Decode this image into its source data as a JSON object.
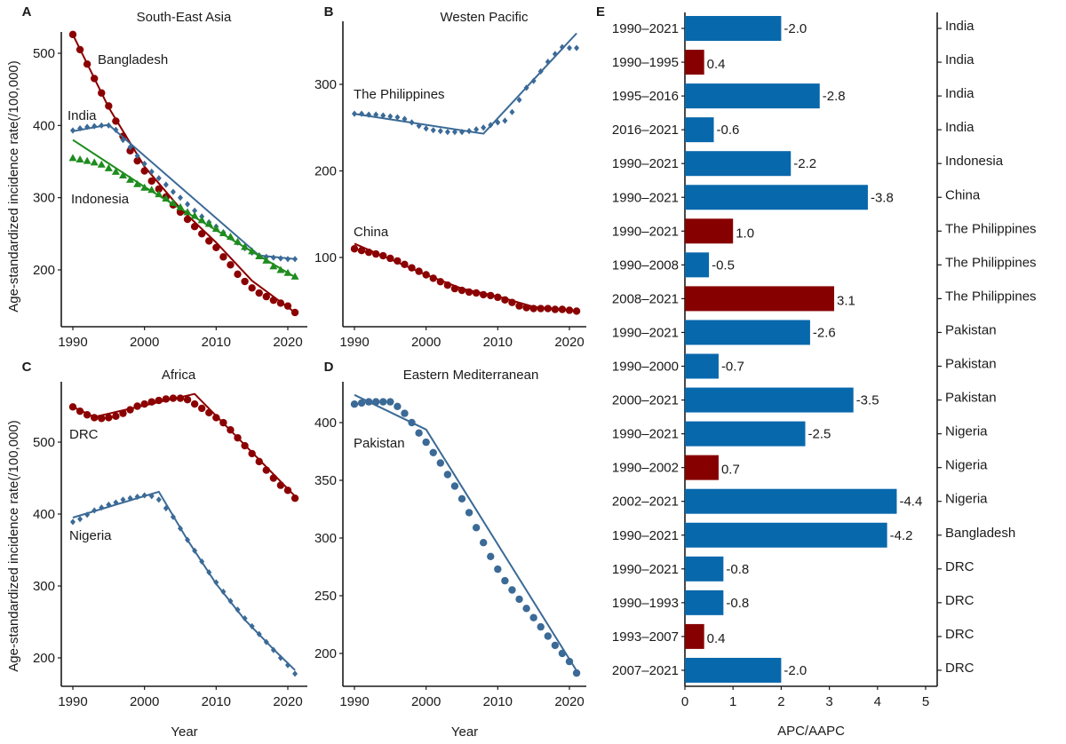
{
  "colors": {
    "red": "#8b0000",
    "blue": "#3b6a96",
    "green": "#1e8c1e",
    "bar_blue": "#0868ac",
    "bar_red": "#870000"
  },
  "ylabel": "Age-standardized incidence rate(/100,000)",
  "chart_data": [
    {
      "panel": "A",
      "type": "line",
      "title": "South-East Asia",
      "xlabel": "",
      "ylabel": "Age-standardized incidence rate(/100,000)",
      "xlim": [
        1988.5,
        2022.5
      ],
      "ylim": [
        135,
        545
      ],
      "xticks": [
        1990,
        2000,
        2010,
        2020
      ],
      "yticks": [
        200,
        300,
        400,
        500
      ],
      "x": [
        1990,
        1991,
        1992,
        1993,
        1994,
        1995,
        1996,
        1997,
        1998,
        1999,
        2000,
        2001,
        2002,
        2003,
        2004,
        2005,
        2006,
        2007,
        2008,
        2009,
        2010,
        2011,
        2012,
        2013,
        2014,
        2015,
        2016,
        2017,
        2018,
        2019,
        2020,
        2021
      ],
      "series": [
        {
          "name": "Bangladesh",
          "color_key": "red",
          "marker": "circle",
          "values": [
            526,
            505,
            485,
            465,
            445,
            427,
            406,
            385,
            365,
            351,
            337,
            323,
            312,
            301,
            290,
            280,
            270,
            260,
            250,
            240,
            231,
            218,
            207,
            194,
            184,
            175,
            168,
            163,
            158,
            154,
            150,
            141
          ],
          "fit_x": [
            1990,
            1995,
            2000,
            2005,
            2010,
            2015,
            2021
          ],
          "fit_y": [
            526,
            425,
            343,
            285,
            238,
            185,
            141
          ]
        },
        {
          "name": "India",
          "color_key": "blue",
          "marker": "diamond",
          "values": [
            393,
            396,
            398,
            399,
            400,
            400,
            394,
            380,
            370,
            358,
            347,
            336,
            327,
            318,
            308,
            300,
            291,
            282,
            274,
            266,
            260,
            252,
            245,
            238,
            230,
            224,
            220,
            218,
            217,
            216,
            215,
            215
          ],
          "fit_x": [
            1990,
            1995,
            2016,
            2021
          ],
          "fit_y": [
            392,
            401,
            220,
            215
          ]
        },
        {
          "name": "Indonesia",
          "color_key": "green",
          "marker": "triangle",
          "values": [
            355,
            353,
            351,
            349,
            346,
            341,
            336,
            331,
            325,
            319,
            314,
            311,
            305,
            299,
            293,
            287,
            280,
            275,
            269,
            264,
            257,
            251,
            246,
            239,
            232,
            226,
            219,
            213,
            205,
            200,
            196,
            191
          ],
          "fit_x": [
            1990,
            2000,
            2010,
            2021
          ],
          "fit_y": [
            380,
            315,
            255,
            190
          ]
        }
      ],
      "annotations": [
        "Bangladesh",
        "India",
        "Indonesia"
      ]
    },
    {
      "panel": "B",
      "type": "line",
      "title": "Westen Pacific",
      "xlim": [
        1988.5,
        2022.5
      ],
      "ylim": [
        30,
        375
      ],
      "xticks": [
        1990,
        2000,
        2010,
        2020
      ],
      "yticks": [
        100,
        200,
        300
      ],
      "x": [
        1990,
        1991,
        1992,
        1993,
        1994,
        1995,
        1996,
        1997,
        1998,
        1999,
        2000,
        2001,
        2002,
        2003,
        2004,
        2005,
        2006,
        2007,
        2008,
        2009,
        2010,
        2011,
        2012,
        2013,
        2014,
        2015,
        2016,
        2017,
        2018,
        2019,
        2020,
        2021
      ],
      "series": [
        {
          "name": "The Philippines",
          "color_key": "blue",
          "marker": "diamond",
          "values": [
            266,
            266,
            265,
            265,
            264,
            263,
            262,
            260,
            256,
            252,
            249,
            247,
            246,
            245,
            245,
            245,
            246,
            248,
            250,
            253,
            256,
            258,
            268,
            282,
            296,
            304,
            315,
            326,
            335,
            343,
            342,
            342
          ],
          "fit_x": [
            1990,
            2008,
            2021
          ],
          "fit_y": [
            266,
            243,
            359
          ]
        },
        {
          "name": "China",
          "color_key": "red",
          "marker": "circle",
          "values": [
            110,
            108,
            106,
            104,
            102,
            99,
            96,
            92,
            88,
            84,
            80,
            76,
            72,
            68,
            64,
            62,
            60,
            59,
            57,
            56,
            54,
            51,
            48,
            44,
            42,
            41,
            41,
            41,
            40,
            40,
            39,
            38
          ],
          "fit_x": [
            1990,
            2000,
            2005,
            2010,
            2015,
            2021
          ],
          "fit_y": [
            116,
            80,
            64,
            55,
            43,
            38
          ]
        }
      ],
      "annotations": [
        "The Philippines",
        "China"
      ]
    },
    {
      "panel": "C",
      "type": "line",
      "title": "Africa",
      "xlim": [
        1988.5,
        2022.5
      ],
      "ylim": [
        160,
        580
      ],
      "xticks": [
        1990,
        2000,
        2010,
        2020
      ],
      "yticks": [
        200,
        300,
        400,
        500
      ],
      "xlabel": "Year",
      "x": [
        1990,
        1991,
        1992,
        1993,
        1994,
        1995,
        1996,
        1997,
        1998,
        1999,
        2000,
        2001,
        2002,
        2003,
        2004,
        2005,
        2006,
        2007,
        2008,
        2009,
        2010,
        2011,
        2012,
        2013,
        2014,
        2015,
        2016,
        2017,
        2018,
        2019,
        2020,
        2021
      ],
      "series": [
        {
          "name": "DRC",
          "color_key": "red",
          "marker": "circle",
          "values": [
            549,
            543,
            538,
            534,
            533,
            534,
            536,
            540,
            545,
            550,
            553,
            556,
            558,
            560,
            561,
            561,
            559,
            553,
            547,
            541,
            534,
            527,
            517,
            506,
            495,
            484,
            473,
            461,
            450,
            440,
            433,
            422
          ],
          "fit_x": [
            1990,
            1993,
            2007,
            2021
          ],
          "fit_y": [
            549,
            535,
            567,
            425
          ]
        },
        {
          "name": "Nigeria",
          "color_key": "blue",
          "marker": "diamond",
          "values": [
            389,
            393,
            399,
            405,
            409,
            413,
            416,
            420,
            422,
            424,
            426,
            425,
            420,
            408,
            396,
            380,
            364,
            349,
            334,
            319,
            305,
            292,
            279,
            267,
            255,
            244,
            233,
            222,
            211,
            200,
            190,
            178
          ],
          "fit_x": [
            1990,
            2002,
            2006,
            2010,
            2014,
            2018,
            2021
          ],
          "fit_y": [
            395,
            431,
            364,
            303,
            253,
            212,
            183
          ]
        }
      ],
      "annotations": [
        "DRC",
        "Nigeria"
      ]
    },
    {
      "panel": "D",
      "type": "line",
      "title": "Eastern Mediterranean",
      "xlim": [
        1988.5,
        2022.5
      ],
      "ylim": [
        172,
        437
      ],
      "xticks": [
        1990,
        2000,
        2010,
        2020
      ],
      "yticks": [
        200,
        250,
        300,
        350,
        400
      ],
      "xlabel": "Year",
      "x": [
        1990,
        1991,
        1992,
        1993,
        1994,
        1995,
        1996,
        1997,
        1998,
        1999,
        2000,
        2001,
        2002,
        2003,
        2004,
        2005,
        2006,
        2007,
        2008,
        2009,
        2010,
        2011,
        2012,
        2013,
        2014,
        2015,
        2016,
        2017,
        2018,
        2019,
        2020,
        2021
      ],
      "series": [
        {
          "name": "Pakistan",
          "color_key": "blue",
          "marker": "circle",
          "values": [
            416,
            417,
            418,
            418,
            418,
            418,
            414,
            408,
            400,
            391,
            383,
            374,
            365,
            355,
            345,
            334,
            322,
            309,
            296,
            284,
            273,
            263,
            255,
            247,
            239,
            231,
            223,
            215,
            207,
            200,
            193,
            183
          ],
          "fit_x": [
            1990,
            2000,
            2021
          ],
          "fit_y": [
            424,
            394,
            185
          ]
        }
      ],
      "annotations": [
        "Pakistan"
      ]
    },
    {
      "panel": "E",
      "type": "bar",
      "orientation": "horizontal",
      "xlabel": "APC/AAPC",
      "xlim": [
        0,
        5.3
      ],
      "xticks": [
        0,
        1,
        2,
        3,
        4,
        5
      ],
      "categories": [
        "1990–2021",
        "1990–1995",
        "1995–2016",
        "2016–2021",
        "1990–2021",
        "1990–2021",
        "1990–2021",
        "1990–2008",
        "2008–2021",
        "1990–2021",
        "1990–2000",
        "2000–2021",
        "1990–2021",
        "1990–2002",
        "2002–2021",
        "1990–2021",
        "1990–2021",
        "1990–1993",
        "1993–2007",
        "2007–2021"
      ],
      "countries": [
        "India",
        "India",
        "India",
        "India",
        "Indonesia",
        "China",
        "The Philippines",
        "The Philippines",
        "The Philippines",
        "Pakistan",
        "Pakistan",
        "Pakistan",
        "Nigeria",
        "Nigeria",
        "Nigeria",
        "Bangladesh",
        "DRC",
        "DRC",
        "DRC",
        "DRC"
      ],
      "values": [
        -2.0,
        0.4,
        -2.8,
        -0.6,
        -2.2,
        -3.8,
        1.0,
        -0.5,
        3.1,
        -2.6,
        -0.7,
        -3.5,
        -2.5,
        0.7,
        -4.4,
        -4.2,
        -0.8,
        -0.8,
        0.4,
        -2.0
      ],
      "labels": [
        "-2.0",
        "0.4",
        "-2.8",
        "-0.6",
        "-2.2",
        "-3.8",
        "1.0",
        "-0.5",
        "3.1",
        "-2.6",
        "-0.7",
        "-3.5",
        "-2.5",
        "0.7",
        "-4.4",
        "-4.2",
        "-0.8",
        "-0.8",
        "0.4",
        "-2.0"
      ],
      "note": "bar length = |value|; red = increase, blue = decrease"
    }
  ]
}
